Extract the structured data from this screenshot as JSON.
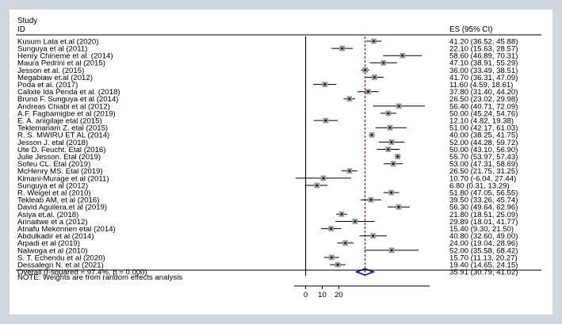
{
  "chart_data": {
    "type": "forest",
    "header": {
      "study_line1": "Study",
      "study_line2": "ID",
      "es_label": "ES (95% CI)"
    },
    "studies": [
      {
        "label": "Kusum Lata et.al (2020)",
        "es": 41.2,
        "lo": 36.52,
        "hi": 45.88,
        "ci_text": "41.20 (36.52, 45.88)"
      },
      {
        "label": "Sunguya et al (2011)",
        "es": 22.1,
        "lo": 15.63,
        "hi": 28.57,
        "ci_text": "22.10 (15.63, 28.57)"
      },
      {
        "label": "Henry Chineme et al.  (2014)",
        "es": 58.6,
        "lo": 46.89,
        "hi": 70.31,
        "ci_text": "58.60 (46.89, 70.31)"
      },
      {
        "label": "Maura Pedrini et al (2015)",
        "es": 47.1,
        "lo": 38.91,
        "hi": 55.29,
        "ci_text": "47.10 (38.91, 55.29)"
      },
      {
        "label": "Jesson et al. (2015)",
        "es": 36.0,
        "lo": 33.49,
        "hi": 38.51,
        "ci_text": "36.00 (33.49, 38.51)"
      },
      {
        "label": "Megabiaw et.al (2012)",
        "es": 41.7,
        "lo": 36.31,
        "hi": 47.09,
        "ci_text": "41.70 (36.31, 47.09)"
      },
      {
        "label": "Poda et al. (2017)",
        "es": 11.6,
        "lo": 4.59,
        "hi": 18.61,
        "ci_text": "11.60 (4.59, 18.61)"
      },
      {
        "label": "Calixte Ida Penda et al.  (2018)",
        "es": 37.8,
        "lo": 31.4,
        "hi": 44.2,
        "ci_text": "37.80 (31.40, 44.20)"
      },
      {
        "label": "Bruno F. Sunguya et al (2014)",
        "es": 26.5,
        "lo": 23.02,
        "hi": 29.98,
        "ci_text": "26.50 (23.02, 29.98)"
      },
      {
        "label": "Andreas Chiabi et al (2012)",
        "es": 56.4,
        "lo": 40.71,
        "hi": 72.09,
        "ci_text": "56.40 (40.71, 72.09)"
      },
      {
        "label": "A.F. Fagbamigbe et al (2019)",
        "es": 50.0,
        "lo": 45.24,
        "hi": 54.76,
        "ci_text": "50.00 (45.24, 54.76)"
      },
      {
        "label": "E. A. anigilaje etal (2015)",
        "es": 12.1,
        "lo": 4.82,
        "hi": 19.38,
        "ci_text": "12.10 (4.82, 19.38)"
      },
      {
        "label": "Teklemariam Z. etal (2015)",
        "es": 51.0,
        "lo": 42.17,
        "hi": 61.03,
        "ci_text": "51.00 (42.17, 61.03)"
      },
      {
        "label": "R. S. MWIRU ET AL (2014)",
        "es": 40.0,
        "lo": 38.25,
        "hi": 41.75,
        "ci_text": "40.00 (38.25, 41.75)"
      },
      {
        "label": "Jesson J. etal (2018)",
        "es": 52.0,
        "lo": 44.28,
        "hi": 59.72,
        "ci_text": "52.00 (44.28, 59.72)"
      },
      {
        "label": "Ute D. Feucht. Etal (2016)",
        "es": 50.0,
        "lo": 43.1,
        "hi": 56.9,
        "ci_text": "50.00 (43.10, 56.90)"
      },
      {
        "label": "Julie Jesson. Etal (2019)",
        "es": 55.7,
        "lo": 53.97,
        "hi": 57.43,
        "ci_text": "55.70 (53.97, 57.43)"
      },
      {
        "label": "Sofeu CL. Etal (2019)",
        "es": 53.0,
        "lo": 47.31,
        "hi": 58.69,
        "ci_text": "53.00 (47.31, 58.69)"
      },
      {
        "label": "McHenry MS. Etal (2019)",
        "es": 26.5,
        "lo": 21.75,
        "hi": 31.25,
        "ci_text": "26.50 (21.75, 31.25)"
      },
      {
        "label": "Kimani-Murage et al (2011)",
        "es": 10.7,
        "lo": -6.04,
        "hi": 27.44,
        "ci_text": "10.70 (-6.04, 27.44)"
      },
      {
        "label": "Sunguya et al (2012)",
        "es": 6.8,
        "lo": 0.31,
        "hi": 13.29,
        "ci_text": "6.80 (0.31, 13.29)"
      },
      {
        "label": "R. Weigel et al (2010)",
        "es": 51.8,
        "lo": 47.05,
        "hi": 56.55,
        "ci_text": "51.80 (47.05, 56.55)"
      },
      {
        "label": "Tekleab AM, et al (2016)",
        "es": 39.5,
        "lo": 33.26,
        "hi": 45.74,
        "ci_text": "39.50 (33.26, 45.74)"
      },
      {
        "label": "David Aguilera.et al (2019)",
        "es": 56.3,
        "lo": 49.64,
        "hi": 62.96,
        "ci_text": "56.30 (49.64, 62.96)"
      },
      {
        "label": "Asiya et.al. (2018)",
        "es": 21.8,
        "lo": 18.51,
        "hi": 25.09,
        "ci_text": "21.80 (18.51, 25.09)"
      },
      {
        "label": "Arinaitwe et a (2012)",
        "es": 29.89,
        "lo": 18.01,
        "hi": 41.77,
        "ci_text": "29.89 (18.01, 41.77)"
      },
      {
        "label": "Atnafu Mekonnen etal  (2014)",
        "es": 15.4,
        "lo": 9.3,
        "hi": 21.5,
        "ci_text": "15.40 (9.30, 21.50)"
      },
      {
        "label": "Abdulkadir et al (2014)",
        "es": 40.8,
        "lo": 32.6,
        "hi": 49.0,
        "ci_text": "40.80 (32.60, 49.00)"
      },
      {
        "label": "Arpadi et al (2019)",
        "es": 24.0,
        "lo": 19.04,
        "hi": 28.96,
        "ci_text": "24.00 (19.04, 28.96)"
      },
      {
        "label": "Nalwoga et al (2010)",
        "es": 52.0,
        "lo": 35.58,
        "hi": 68.42,
        "ci_text": "52.00 (35.58, 68.42)"
      },
      {
        "label": "S. T. Echendu et al (2020)",
        "es": 15.7,
        "lo": 11.13,
        "hi": 20.27,
        "ci_text": "15.70 (11.13, 20.27)"
      },
      {
        "label": "Dessalegn N. et al (2021)",
        "es": 19.4,
        "lo": 14.65,
        "hi": 24.15,
        "ci_text": "19.40 (14.65, 24.15)"
      }
    ],
    "overall": {
      "label": "Overall  (I-squared = 97.4%, p = 0.000)",
      "es": 35.91,
      "lo": 30.79,
      "hi": 41.02,
      "ci_text": "35.91 (30.79, 41.02)"
    },
    "note": "NOTE: Weights are from random effects analysis",
    "x_ticks": [
      0,
      10,
      20
    ],
    "xlim": [
      -7,
      75
    ],
    "null_line": 0,
    "colors": {
      "summary_diamond": "#0000cc",
      "overall_line": "#990000",
      "marker": "#000000",
      "background": "#cfd8dc"
    }
  }
}
